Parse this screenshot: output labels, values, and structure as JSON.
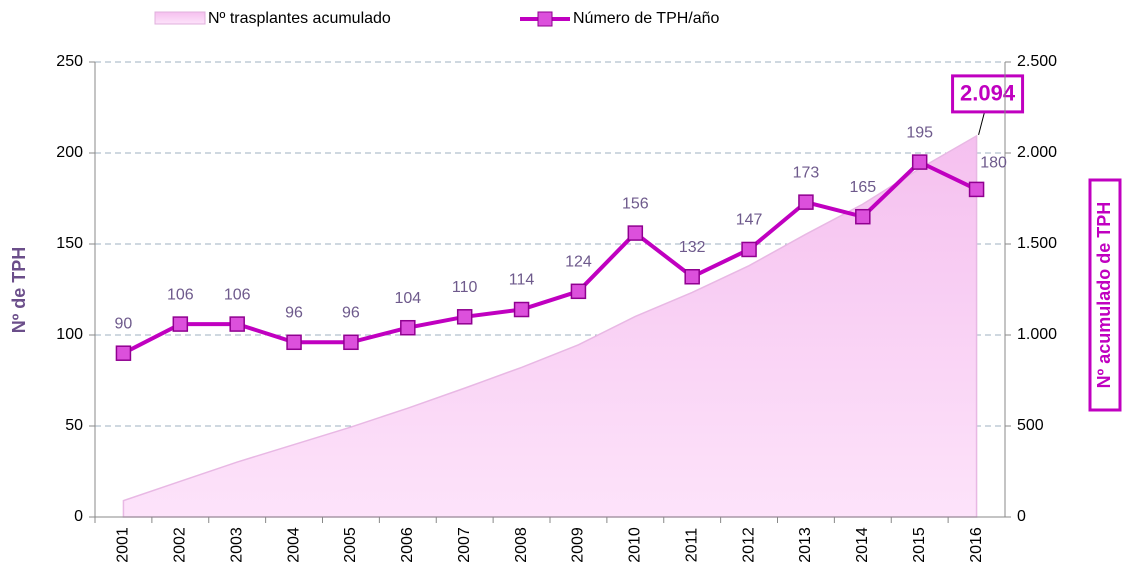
{
  "chart_data": {
    "type": "line",
    "y_label": "Nº de TPH",
    "y2_label": "Nº acumulado de TPH",
    "categories": [
      "2001",
      "2002",
      "2003",
      "2004",
      "2005",
      "2006",
      "2007",
      "2008",
      "2009",
      "2010",
      "2011",
      "2012",
      "2013",
      "2014",
      "2015",
      "2016"
    ],
    "series": [
      {
        "name": "Nº trasplantes acumulado",
        "type": "area",
        "axis": "y2",
        "color": "#f9cdf4",
        "values": [
          90,
          196,
          302,
          398,
          494,
          598,
          708,
          822,
          946,
          1102,
          1234,
          1381,
          1554,
          1719,
          1914,
          2094
        ],
        "value_labels": [
          null,
          null,
          null,
          null,
          null,
          null,
          null,
          null,
          null,
          null,
          null,
          null,
          null,
          null,
          null,
          "2.094"
        ]
      },
      {
        "name": "Número de TPH/año",
        "type": "line",
        "color": "#c000c0",
        "values": [
          90,
          106,
          106,
          96,
          96,
          104,
          110,
          114,
          124,
          156,
          132,
          147,
          173,
          165,
          195,
          180
        ]
      }
    ],
    "ylim": [
      0,
      250
    ],
    "yticks": [
      0,
      50,
      100,
      150,
      200,
      250
    ],
    "y2lim": [
      0,
      2500
    ],
    "y2ticks": [
      0,
      500,
      {
        "value": 1000,
        "label": "1.000"
      },
      {
        "value": 1500,
        "label": "1.500"
      },
      {
        "value": 2000,
        "label": "2.000"
      },
      {
        "value": 2500,
        "label": "2.500"
      }
    ],
    "grid": true,
    "legend": "top"
  }
}
